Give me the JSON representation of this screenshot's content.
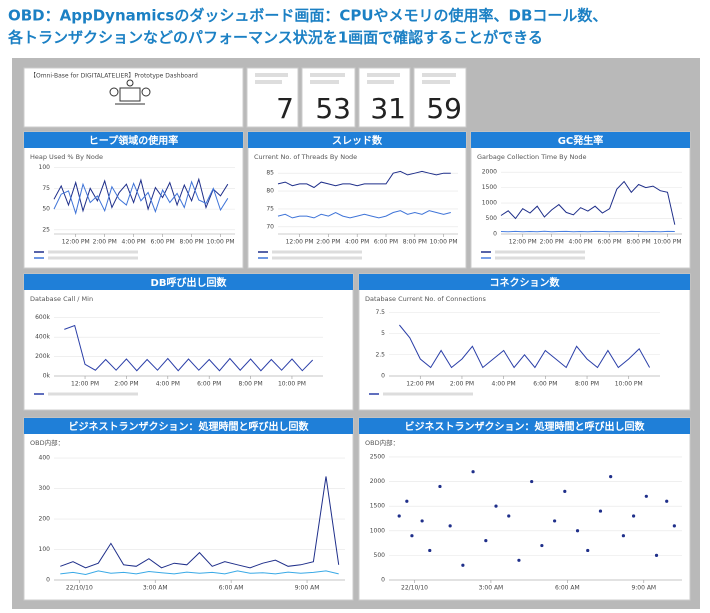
{
  "caption": {
    "line1": "OBD：AppDynamicsのダッシュボード画面：CPUやメモリの使用率、DBコール数、",
    "line2": "各トランザクションなどのパフォーマンス状況を1画面で確認することができる"
  },
  "dashboard": {
    "title": "【Omni-Base for DIGITALATELIER】Prototype Dashboard",
    "tiles": [
      {
        "value": 7
      },
      {
        "value": 53
      },
      {
        "value": 31
      },
      {
        "value": 59
      }
    ],
    "panels": [
      {
        "heading": "ヒープ領域の使用率",
        "subtitle": "Heap Used % By Node",
        "chart": {
          "type": "line",
          "xlim": [
            10.5,
            23
          ],
          "xticks": [
            {
              "value": 12,
              "label": "12:00 PM"
            },
            {
              "value": 14,
              "label": "2:00 PM"
            },
            {
              "value": 16,
              "label": "4:00 PM"
            },
            {
              "value": 18,
              "label": "6:00 PM"
            },
            {
              "value": 20,
              "label": "8:00 PM"
            },
            {
              "value": 22,
              "label": "10:00 PM"
            }
          ],
          "ylim": [
            20,
            102
          ],
          "yticks": [
            25,
            50,
            75,
            100
          ],
          "x": [
            10.5,
            11,
            11.5,
            12,
            12.5,
            13,
            13.5,
            14,
            14.5,
            15,
            15.5,
            16,
            16.5,
            17,
            17.5,
            18,
            18.5,
            19,
            19.5,
            20,
            20.5,
            21,
            21.5,
            22,
            22.5
          ],
          "series": [
            {
              "color": "#1f2f8a",
              "values": [
                62,
                78,
                55,
                82,
                48,
                75,
                60,
                84,
                52,
                70,
                80,
                58,
                85,
                50,
                76,
                64,
                82,
                55,
                79,
                60,
                86,
                52,
                74,
                66,
                80
              ]
            },
            {
              "color": "#3f74d8",
              "values": [
                50,
                68,
                72,
                45,
                80,
                58,
                66,
                48,
                77,
                62,
                55,
                81,
                60,
                70,
                47,
                73,
                58,
                69,
                52,
                83,
                61,
                57,
                75,
                49,
                63
              ]
            }
          ]
        }
      },
      {
        "heading": "スレッド数",
        "subtitle": "Current No. of Threads By Node",
        "chart": {
          "type": "line",
          "xlim": [
            10.5,
            23
          ],
          "xticks": [
            {
              "value": 12,
              "label": "12:00 PM"
            },
            {
              "value": 14,
              "label": "2:00 PM"
            },
            {
              "value": 16,
              "label": "4:00 PM"
            },
            {
              "value": 18,
              "label": "6:00 PM"
            },
            {
              "value": 20,
              "label": "8:00 PM"
            },
            {
              "value": 22,
              "label": "10:00 PM"
            }
          ],
          "ylim": [
            68,
            87
          ],
          "yticks": [
            70,
            75,
            80,
            85
          ],
          "x": [
            10.5,
            11,
            11.5,
            12,
            12.5,
            13,
            13.5,
            14,
            14.5,
            15,
            15.5,
            16,
            16.5,
            17,
            17.5,
            18,
            18.5,
            19,
            19.5,
            20,
            20.5,
            21,
            21.5,
            22,
            22.5
          ],
          "series": [
            {
              "color": "#1f2f8a",
              "values": [
                82,
                82.5,
                81.5,
                82,
                82,
                81,
                82.5,
                82,
                81.5,
                82,
                82,
                81.5,
                82,
                82,
                82,
                82,
                85,
                85.5,
                84.5,
                85,
                85.5,
                85,
                84.5,
                85,
                85
              ]
            },
            {
              "color": "#3f74d8",
              "values": [
                73,
                73.5,
                72.5,
                73,
                73,
                72.5,
                73.5,
                73,
                74,
                73,
                72.5,
                73,
                73.5,
                73,
                72.5,
                73,
                74,
                74.5,
                73.5,
                74,
                73.5,
                74.5,
                74,
                73.5,
                74
              ]
            }
          ]
        }
      },
      {
        "heading": "GC発生率",
        "subtitle": "Garbage Collection Time By Node",
        "chart": {
          "type": "line",
          "xlim": [
            10.5,
            23
          ],
          "xticks": [
            {
              "value": 12,
              "label": "12:00 PM"
            },
            {
              "value": 14,
              "label": "2:00 PM"
            },
            {
              "value": 16,
              "label": "4:00 PM"
            },
            {
              "value": 18,
              "label": "6:00 PM"
            },
            {
              "value": 20,
              "label": "8:00 PM"
            },
            {
              "value": 22,
              "label": "10:00 PM"
            }
          ],
          "ylim": [
            0,
            2200
          ],
          "yticks": [
            0,
            500,
            1000,
            1500,
            2000
          ],
          "x": [
            10.5,
            11,
            11.5,
            12,
            12.5,
            13,
            13.5,
            14,
            14.5,
            15,
            15.5,
            16,
            16.5,
            17,
            17.5,
            18,
            18.5,
            19,
            19.5,
            20,
            20.5,
            21,
            21.5,
            22,
            22.5
          ],
          "series": [
            {
              "color": "#1f2f8a",
              "values": [
                600,
                750,
                500,
                820,
                680,
                900,
                550,
                780,
                950,
                700,
                620,
                850,
                740,
                900,
                680,
                820,
                1450,
                1700,
                1350,
                1600,
                1500,
                1550,
                1400,
                1350,
                300
              ]
            },
            {
              "color": "#4a7fe0",
              "values": [
                80,
                70,
                85,
                75,
                80,
                70,
                90,
                75,
                80,
                85,
                70,
                80,
                75,
                85,
                80,
                70,
                80,
                75,
                85,
                80,
                70,
                80,
                75,
                85,
                80
              ]
            }
          ]
        }
      },
      {
        "heading": "DB呼び出し回数",
        "subtitle": "Database Call / Min",
        "chart": {
          "type": "line",
          "xlim": [
            10.5,
            23.5
          ],
          "xticks": [
            {
              "value": 12,
              "label": "12:00 PM"
            },
            {
              "value": 14,
              "label": "2:00 PM"
            },
            {
              "value": 16,
              "label": "4:00 PM"
            },
            {
              "value": 18,
              "label": "6:00 PM"
            },
            {
              "value": 20,
              "label": "8:00 PM"
            },
            {
              "value": 22,
              "label": "10:00 PM"
            }
          ],
          "ylim": [
            0,
            700000
          ],
          "yticks": [
            {
              "value": 0,
              "label": "0k"
            },
            {
              "value": 200000,
              "label": "200k"
            },
            {
              "value": 400000,
              "label": "400k"
            },
            {
              "value": 600000,
              "label": "600k"
            }
          ],
          "x": [
            11,
            11.5,
            12,
            12.5,
            13,
            13.5,
            14,
            14.5,
            15,
            15.5,
            16,
            16.5,
            17,
            17.5,
            18,
            18.5,
            19,
            19.5,
            20,
            20.5,
            21,
            21.5,
            22,
            22.5,
            23
          ],
          "series": [
            {
              "color": "#2b3fa8",
              "values": [
                480000,
                520000,
                120000,
                60000,
                170000,
                60000,
                175000,
                55000,
                170000,
                60000,
                180000,
                55000,
                175000,
                60000,
                170000,
                55000,
                180000,
                60000,
                175000,
                55000,
                170000,
                60000,
                175000,
                55000,
                165000
              ]
            }
          ]
        }
      },
      {
        "heading": "コネクション数",
        "subtitle": "Database Current No. of Connections",
        "chart": {
          "type": "line",
          "xlim": [
            10.5,
            23.5
          ],
          "xticks": [
            {
              "value": 12,
              "label": "12:00 PM"
            },
            {
              "value": 14,
              "label": "2:00 PM"
            },
            {
              "value": 16,
              "label": "4:00 PM"
            },
            {
              "value": 18,
              "label": "6:00 PM"
            },
            {
              "value": 20,
              "label": "8:00 PM"
            },
            {
              "value": 22,
              "label": "10:00 PM"
            }
          ],
          "ylim": [
            0,
            8
          ],
          "yticks": [
            0,
            2.5,
            5,
            7.5
          ],
          "x": [
            11,
            11.5,
            12,
            12.5,
            13,
            13.5,
            14,
            14.5,
            15,
            15.5,
            16,
            16.5,
            17,
            17.5,
            18,
            18.5,
            19,
            19.5,
            20,
            20.5,
            21,
            21.5,
            22,
            22.5,
            23
          ],
          "series": [
            {
              "color": "#2b3fa8",
              "values": [
                6,
                4.5,
                2,
                1,
                3,
                1,
                2,
                3.5,
                1,
                2,
                3,
                1,
                2.5,
                1,
                3,
                2,
                1,
                3.5,
                2,
                1,
                3,
                1,
                2,
                3.2,
                1
              ]
            }
          ]
        }
      },
      {
        "heading": "ビジネストランザクション：処理時間と呼び出し回数",
        "subtitle": "OBD内部：",
        "chart": {
          "type": "line",
          "xlim": [
            -1,
            10.5
          ],
          "xticks": [
            {
              "value": 0,
              "label": "22/10/10"
            },
            {
              "value": 3,
              "label": "3:00 AM"
            },
            {
              "value": 6,
              "label": "6:00 AM"
            },
            {
              "value": 9,
              "label": "9:00 AM"
            }
          ],
          "ylim": [
            0,
            420
          ],
          "yticks": [
            0,
            100,
            200,
            300,
            400
          ],
          "x": [
            -0.75,
            -0.25,
            0.25,
            0.75,
            1.25,
            1.75,
            2.25,
            2.75,
            3.25,
            3.75,
            4.25,
            4.75,
            5.25,
            5.75,
            6.25,
            6.75,
            7.25,
            7.75,
            8.25,
            8.75,
            9.25,
            9.75,
            10.25
          ],
          "series": [
            {
              "color": "#1f2f8a",
              "values": [
                45,
                60,
                40,
                55,
                120,
                50,
                45,
                70,
                40,
                55,
                50,
                90,
                45,
                60,
                50,
                40,
                55,
                65,
                45,
                50,
                60,
                340,
                50
              ]
            },
            {
              "color": "#39a9e6",
              "values": [
                20,
                25,
                18,
                30,
                22,
                25,
                20,
                28,
                24,
                20,
                26,
                22,
                25,
                20,
                30,
                22,
                24,
                20,
                26,
                22,
                25,
                30,
                20
              ]
            }
          ]
        }
      },
      {
        "heading": "ビジネストランザクション：処理時間と呼び出し回数",
        "subtitle": "OBD内部：",
        "chart": {
          "type": "scatter",
          "xlim": [
            -1,
            10.5
          ],
          "xticks": [
            {
              "value": 0,
              "label": "22/10/10"
            },
            {
              "value": 3,
              "label": "3:00 AM"
            },
            {
              "value": 6,
              "label": "6:00 AM"
            },
            {
              "value": 9,
              "label": "9:00 AM"
            }
          ],
          "ylim": [
            0,
            2600
          ],
          "yticks": [
            0,
            500,
            1000,
            1500,
            2000,
            2500
          ],
          "x": [
            -0.6,
            -0.3,
            -0.1,
            0.3,
            0.6,
            1.0,
            1.4,
            1.9,
            2.3,
            2.8,
            3.2,
            3.7,
            4.1,
            4.6,
            5.0,
            5.5,
            5.9,
            6.4,
            6.8,
            7.3,
            7.7,
            8.2,
            8.6,
            9.1,
            9.5,
            9.9,
            10.2
          ],
          "series": [
            {
              "color": "#1f2f8a",
              "values": [
                1300,
                1600,
                900,
                1200,
                600,
                1900,
                1100,
                300,
                2200,
                800,
                1500,
                1300,
                400,
                2000,
                700,
                1200,
                1800,
                1000,
                600,
                1400,
                2100,
                900,
                1300,
                1700,
                500,
                1600,
                1100
              ]
            }
          ]
        }
      }
    ]
  }
}
